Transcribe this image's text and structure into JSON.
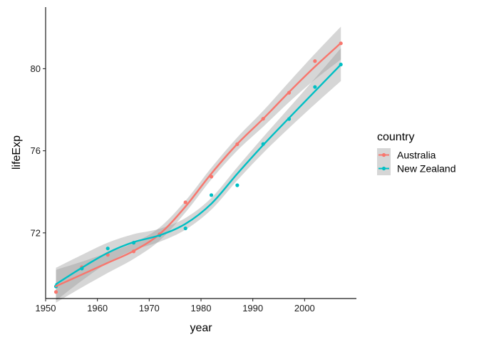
{
  "chart_data": {
    "type": "scatter",
    "title": "",
    "xlabel": "year",
    "ylabel": "lifeExp",
    "xlim": [
      1950,
      2010
    ],
    "ylim": [
      68.8,
      83
    ],
    "x_ticks": [
      1950,
      1960,
      1970,
      1980,
      1990,
      2000
    ],
    "y_ticks": [
      72,
      76,
      80
    ],
    "grid": false,
    "smoothing": "loess with confidence band",
    "legend": {
      "title": "country",
      "position": "right"
    },
    "x": [
      1952,
      1957,
      1962,
      1967,
      1972,
      1977,
      1982,
      1987,
      1992,
      1997,
      2002,
      2007
    ],
    "series": [
      {
        "name": "Australia",
        "color": "#F8766D",
        "values": [
          69.12,
          70.33,
          70.93,
          71.1,
          71.93,
          73.49,
          74.74,
          76.32,
          77.56,
          78.83,
          80.37,
          81.235
        ],
        "fit": [
          69.4,
          69.97,
          70.54,
          71.12,
          71.94,
          73.28,
          74.89,
          76.33,
          77.56,
          78.86,
          80.1,
          81.25
        ]
      },
      {
        "name": "New Zealand",
        "color": "#00BFC4",
        "values": [
          69.39,
          70.26,
          71.24,
          71.52,
          71.89,
          72.22,
          73.84,
          74.32,
          76.33,
          77.55,
          79.11,
          80.204
        ],
        "fit": [
          69.5,
          70.3,
          71.03,
          71.55,
          71.88,
          72.44,
          73.42,
          74.88,
          76.28,
          77.6,
          78.9,
          80.2
        ]
      }
    ]
  }
}
